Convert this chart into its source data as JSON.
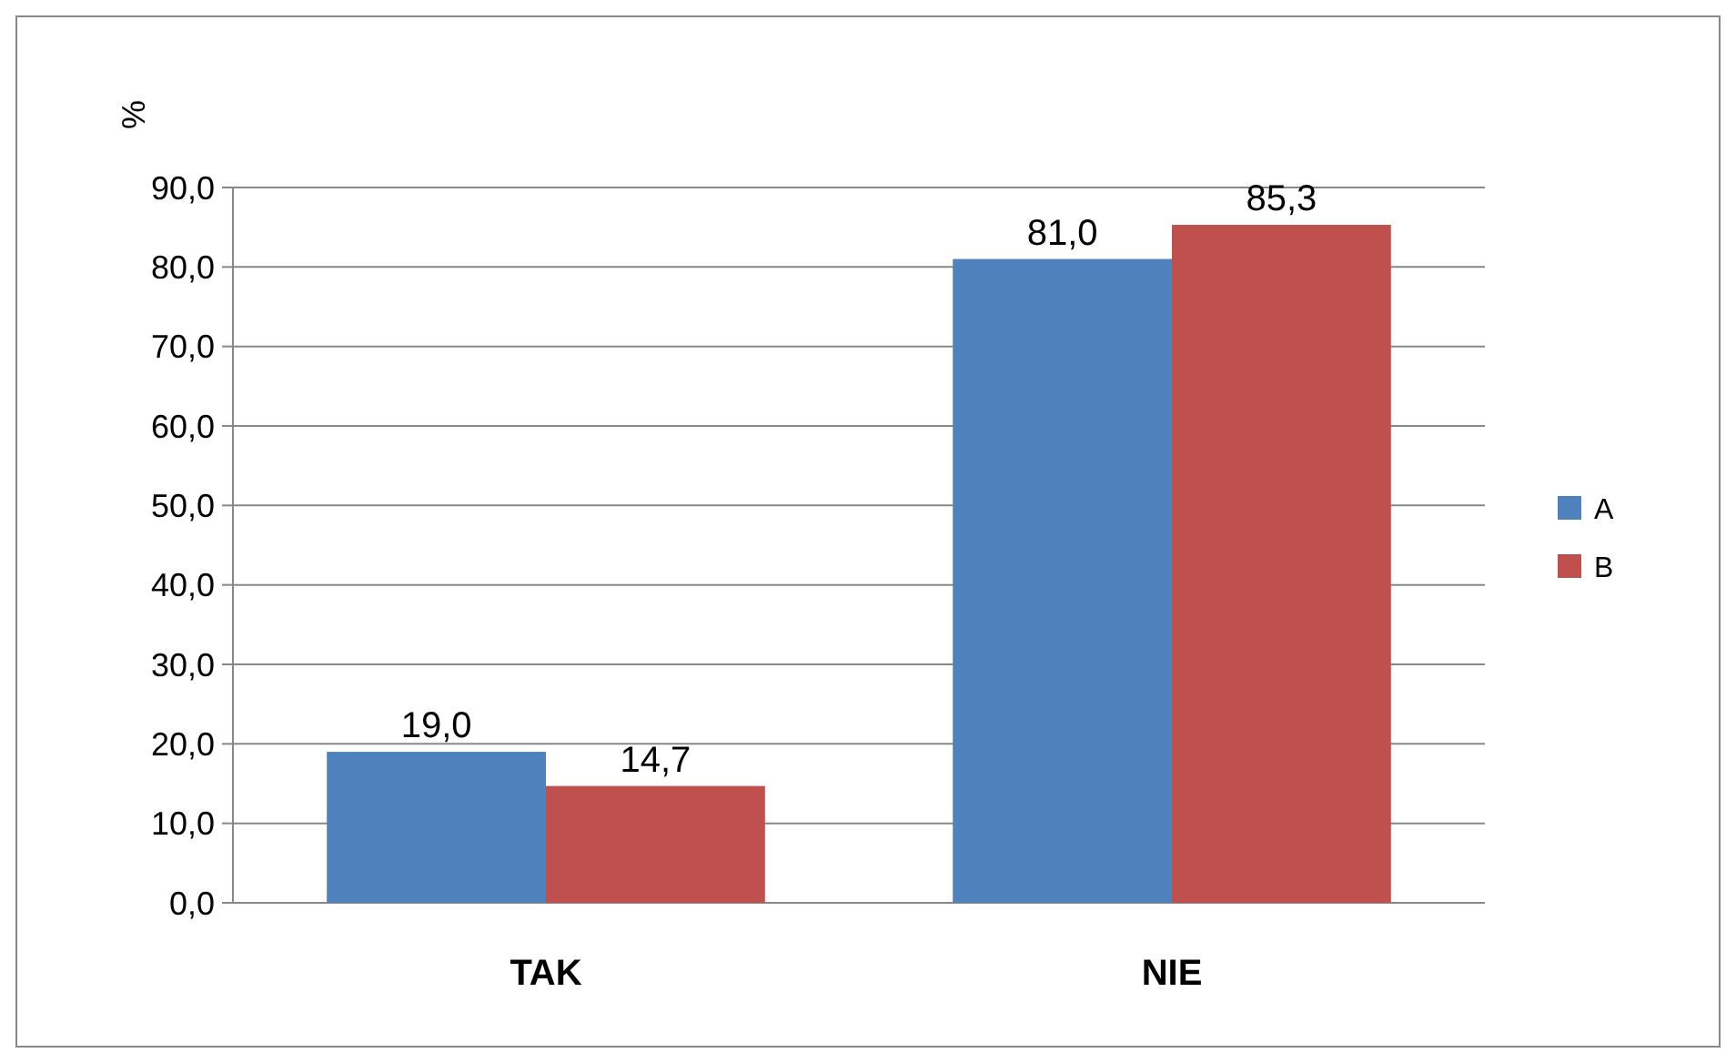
{
  "chart_data": {
    "type": "bar",
    "ylabel": "%",
    "categories": [
      "TAK",
      "NIE"
    ],
    "series": [
      {
        "name": "A",
        "color": "#4f81bd",
        "values": [
          19.0,
          81.0
        ],
        "value_labels": [
          "19,0",
          "81,0"
        ]
      },
      {
        "name": "B",
        "color": "#c0504d",
        "values": [
          14.7,
          85.3
        ],
        "value_labels": [
          "14,7",
          "85,3"
        ]
      }
    ],
    "ylim": [
      0,
      90
    ],
    "yticks": [
      {
        "value": 0,
        "label": "0,0"
      },
      {
        "value": 10,
        "label": "10,0"
      },
      {
        "value": 20,
        "label": "20,0"
      },
      {
        "value": 30,
        "label": "30,0"
      },
      {
        "value": 40,
        "label": "40,0"
      },
      {
        "value": 50,
        "label": "50,0"
      },
      {
        "value": 60,
        "label": "60,0"
      },
      {
        "value": 70,
        "label": "70,0"
      },
      {
        "value": 80,
        "label": "80,0"
      },
      {
        "value": 90,
        "label": "90,0"
      }
    ],
    "grid": "y",
    "legend": "right"
  }
}
